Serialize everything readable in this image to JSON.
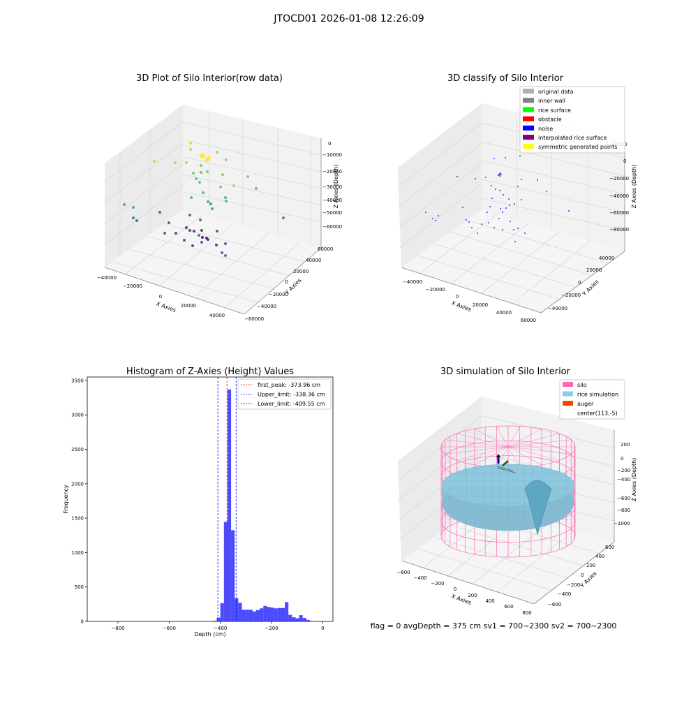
{
  "suptitle": "JTOCD01 2026-01-08 12:26:09",
  "status_text": "flag = 0     avgDepth = 375 cm  sv1 = 700~2300  sv2 = 700~2300",
  "panels": {
    "raw": {
      "title": "3D Plot of Silo Interior(row data)",
      "xlabel": "X Axies",
      "ylabel": "Y Axies",
      "zlabel": "Z Axies (Depth)",
      "xticks": [
        "−40000",
        "−20000",
        "0",
        "20000",
        "40000"
      ],
      "yticks": [
        "60000",
        "40000",
        "20000",
        "0",
        "−20000",
        "−40000",
        "−60000"
      ],
      "zticks": [
        "0",
        "−10000",
        "−20000",
        "−30000",
        "−40000",
        "−50000",
        "−60000"
      ]
    },
    "classify": {
      "title": "3D classify of Silo Interior",
      "xlabel": "X Axies",
      "ylabel": "Y Axies",
      "zlabel": "Z Axies (Depth)",
      "xticks": [
        "−40000",
        "−20000",
        "0",
        "20000",
        "40000",
        "60000"
      ],
      "yticks": [
        "40000",
        "20000",
        "0",
        "−20000",
        "−40000"
      ],
      "zticks": [
        "20000",
        "0",
        "−20000",
        "−40000",
        "−60000",
        "−80000"
      ],
      "legend": [
        {
          "label": "original data",
          "color": "#b0b0b0"
        },
        {
          "label": "inner wall",
          "color": "#808080"
        },
        {
          "label": "rice surface",
          "color": "#00ff00"
        },
        {
          "label": "obstacle",
          "color": "#ff0000"
        },
        {
          "label": "noise",
          "color": "#0000ff"
        },
        {
          "label": "interpolated rice surface",
          "color": "#800080"
        },
        {
          "label": "symmetric generated points",
          "color": "#ffff00"
        }
      ]
    },
    "histogram": {
      "title": "Histogram of Z-Axies (Height) Values",
      "xlabel": "Depth (cm)",
      "ylabel": "Frequency",
      "legend": [
        {
          "label": "first_peak: -373.96 cm",
          "color": "#ff0000"
        },
        {
          "label": "Upper_limit: -338.36 cm",
          "color": "#0000ff"
        },
        {
          "label": "Lower_limit: -409.55 cm",
          "color": "#0000ff"
        }
      ]
    },
    "simulation": {
      "title": "3D simulation of Silo Interior",
      "xlabel": "X Axies",
      "ylabel": "Y Axies",
      "zlabel": "Z Axies (Depth)",
      "xticks": [
        "−600",
        "−400",
        "−200",
        "0",
        "200",
        "400",
        "600",
        "800"
      ],
      "yticks": [
        "600",
        "400",
        "200",
        "0",
        "−200",
        "−400",
        "−600"
      ],
      "zticks": [
        "200",
        "0",
        "−200",
        "−400",
        "−600",
        "−800",
        "−1000"
      ],
      "legend": [
        {
          "label": "silo",
          "color": "#ff69b4"
        },
        {
          "label": "rice simulation",
          "color": "#87ceeb"
        },
        {
          "label": "auger",
          "color": "#ff4500"
        },
        {
          "label": "center(113,-5)",
          "color": ""
        }
      ]
    }
  },
  "chart_data": [
    {
      "type": "histogram",
      "title": "Histogram of Z-Axies (Height) Values",
      "xlabel": "Depth (cm)",
      "ylabel": "Frequency",
      "xlim": [
        -920,
        40
      ],
      "ylim": [
        0,
        3550
      ],
      "xticks": [
        -800,
        -600,
        -400,
        -200,
        0
      ],
      "yticks": [
        0,
        500,
        1000,
        1500,
        2000,
        2500,
        3000,
        3500
      ],
      "bar_color": "#0000ff",
      "bins": [
        {
          "x0": -428,
          "x1": -414,
          "count": 10
        },
        {
          "x0": -414,
          "x1": -400,
          "count": 55
        },
        {
          "x0": -400,
          "x1": -386,
          "count": 265
        },
        {
          "x0": -386,
          "x1": -372,
          "count": 1445
        },
        {
          "x0": -372,
          "x1": -358,
          "count": 3370
        },
        {
          "x0": -358,
          "x1": -344,
          "count": 1325
        },
        {
          "x0": -344,
          "x1": -330,
          "count": 335
        },
        {
          "x0": -330,
          "x1": -316,
          "count": 270
        },
        {
          "x0": -316,
          "x1": -302,
          "count": 170
        },
        {
          "x0": -302,
          "x1": -288,
          "count": 170
        },
        {
          "x0": -288,
          "x1": -274,
          "count": 170
        },
        {
          "x0": -274,
          "x1": -260,
          "count": 145
        },
        {
          "x0": -260,
          "x1": -246,
          "count": 165
        },
        {
          "x0": -246,
          "x1": -232,
          "count": 190
        },
        {
          "x0": -232,
          "x1": -218,
          "count": 225
        },
        {
          "x0": -218,
          "x1": -204,
          "count": 210
        },
        {
          "x0": -204,
          "x1": -190,
          "count": 200
        },
        {
          "x0": -190,
          "x1": -176,
          "count": 190
        },
        {
          "x0": -176,
          "x1": -162,
          "count": 195
        },
        {
          "x0": -162,
          "x1": -148,
          "count": 195
        },
        {
          "x0": -148,
          "x1": -134,
          "count": 280
        },
        {
          "x0": -134,
          "x1": -120,
          "count": 95
        },
        {
          "x0": -120,
          "x1": -106,
          "count": 60
        },
        {
          "x0": -106,
          "x1": -92,
          "count": 45
        },
        {
          "x0": -92,
          "x1": -78,
          "count": 90
        },
        {
          "x0": -78,
          "x1": -64,
          "count": 50
        },
        {
          "x0": -64,
          "x1": -50,
          "count": 20
        },
        {
          "x0": -50,
          "x1": -36,
          "count": 5
        }
      ],
      "vlines": [
        {
          "name": "first_peak",
          "x": -373.96,
          "color": "#ff0000"
        },
        {
          "name": "Upper_limit",
          "x": -338.36,
          "color": "#0000ff"
        },
        {
          "name": "Lower_limit",
          "x": -409.55,
          "color": "#0000ff"
        }
      ]
    }
  ]
}
